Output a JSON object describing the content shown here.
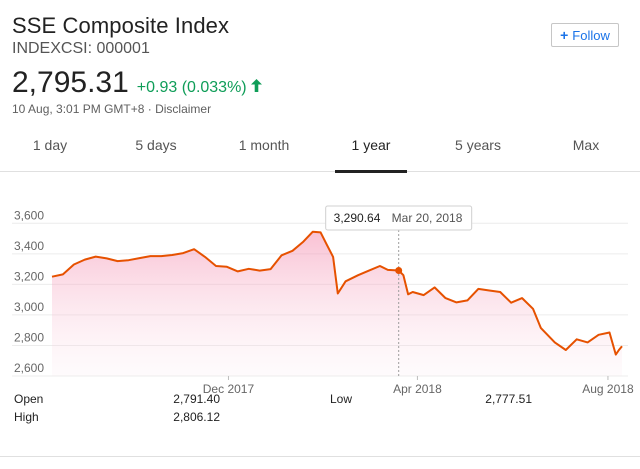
{
  "header": {
    "title": "SSE Composite Index",
    "ticker": "INDEXCSI: 000001",
    "follow_label": "Follow",
    "follow_icon": "plus-icon"
  },
  "quote": {
    "price": "2,795.31",
    "change": "+0.93 (0.033%)",
    "change_color": "#0f9d58",
    "trend_icon": "arrow-up-icon",
    "timestamp": "10 Aug, 3:01 PM GMT+8",
    "separator": " · ",
    "disclaimer": "Disclaimer"
  },
  "tabs": [
    {
      "label": "1 day",
      "active": false
    },
    {
      "label": "5 days",
      "active": false
    },
    {
      "label": "1 month",
      "active": false
    },
    {
      "label": "1 year",
      "active": true
    },
    {
      "label": "5 years",
      "active": false
    },
    {
      "label": "Max",
      "active": false
    }
  ],
  "tooltip": {
    "value": "3,290.64",
    "date": "Mar 20, 2018"
  },
  "stats": [
    {
      "label": "Open",
      "value": "2,791.40"
    },
    {
      "label": "High",
      "value": "2,806.12"
    },
    {
      "label": "Low",
      "value": "2,777.51"
    }
  ],
  "chart_data": {
    "type": "area",
    "line_color": "#e65100",
    "fill_color": "#f8bbd0",
    "ylim": [
      2600,
      3700
    ],
    "yticks": [
      "3,600",
      "3,400",
      "3,200",
      "3,000",
      "2,800",
      "2,600"
    ],
    "ytick_values": [
      3600,
      3400,
      3200,
      3000,
      2800,
      2600
    ],
    "xticks": [
      "Dec 2017",
      "Apr 2018",
      "Aug 2018"
    ],
    "xtick_dates": [
      "2017-12-01",
      "2018-04-01",
      "2018-08-01"
    ],
    "hover_date": "2018-03-20",
    "hover_value": 3290.64,
    "series": [
      {
        "x": [
          "2017-08-10",
          "2017-08-17",
          "2017-08-24",
          "2017-08-31",
          "2017-09-07",
          "2017-09-14",
          "2017-09-21",
          "2017-09-28",
          "2017-10-05",
          "2017-10-12",
          "2017-10-19",
          "2017-10-26",
          "2017-11-02",
          "2017-11-09",
          "2017-11-16",
          "2017-11-23",
          "2017-11-30",
          "2017-12-07",
          "2017-12-14",
          "2017-12-21",
          "2017-12-28",
          "2018-01-04",
          "2018-01-11",
          "2018-01-18",
          "2018-01-24",
          "2018-01-29",
          "2018-02-02",
          "2018-02-06",
          "2018-02-09",
          "2018-02-14",
          "2018-02-22",
          "2018-03-01",
          "2018-03-08",
          "2018-03-13",
          "2018-03-20",
          "2018-03-23",
          "2018-03-26",
          "2018-03-29",
          "2018-04-05",
          "2018-04-12",
          "2018-04-19",
          "2018-04-26",
          "2018-05-03",
          "2018-05-10",
          "2018-05-17",
          "2018-05-24",
          "2018-05-31",
          "2018-06-07",
          "2018-06-14",
          "2018-06-19",
          "2018-06-28",
          "2018-07-05",
          "2018-07-12",
          "2018-07-19",
          "2018-07-26",
          "2018-08-02",
          "2018-08-06",
          "2018-08-08",
          "2018-08-10"
        ],
        "values": [
          3250,
          3265,
          3330,
          3362,
          3382,
          3370,
          3352,
          3358,
          3372,
          3385,
          3385,
          3392,
          3405,
          3430,
          3380,
          3320,
          3315,
          3285,
          3302,
          3290,
          3300,
          3390,
          3420,
          3480,
          3545,
          3540,
          3460,
          3380,
          3140,
          3220,
          3260,
          3290,
          3320,
          3295,
          3290.64,
          3260,
          3135,
          3150,
          3130,
          3180,
          3110,
          3082,
          3095,
          3170,
          3160,
          3150,
          3080,
          3110,
          3040,
          2915,
          2820,
          2770,
          2840,
          2820,
          2870,
          2885,
          2740,
          2770,
          2795
        ]
      }
    ]
  }
}
